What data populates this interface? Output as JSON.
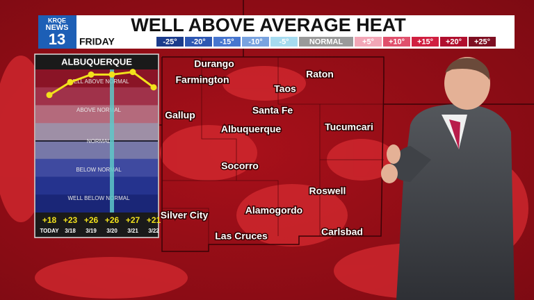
{
  "logo": {
    "top": "KRQE",
    "middle": "NEWS",
    "channel": "13"
  },
  "header": {
    "title": "WELL ABOVE AVERAGE HEAT",
    "day": "FRIDAY"
  },
  "legend": {
    "items": [
      {
        "label": "-25°",
        "color": "#1b3c8c"
      },
      {
        "label": "-20°",
        "color": "#2d57b2"
      },
      {
        "label": "-15°",
        "color": "#4776cf"
      },
      {
        "label": "-10°",
        "color": "#79a3df"
      },
      {
        "label": "-5°",
        "color": "#a6dbef"
      },
      {
        "label": "NORMAL",
        "color": "#9a9a9a"
      },
      {
        "label": "+5°",
        "color": "#f2a6b6"
      },
      {
        "label": "+10°",
        "color": "#e0506c"
      },
      {
        "label": "+15°",
        "color": "#d01f40"
      },
      {
        "label": "+20°",
        "color": "#b00f2e"
      },
      {
        "label": "+25°",
        "color": "#7e0f22"
      }
    ]
  },
  "map": {
    "cities": [
      "Durango",
      "Farmington",
      "Raton",
      "Taos",
      "Santa Fe",
      "Gallup",
      "Albuquerque",
      "Tucumcari",
      "Socorro",
      "Roswell",
      "Alamogordo",
      "Silver City",
      "Carlsbad",
      "Las Cruces"
    ]
  },
  "chart_data": {
    "type": "line",
    "title": "ALBUQUERQUE",
    "categories": [
      "TODAY",
      "3/18",
      "3/19",
      "3/20",
      "3/21",
      "3/22"
    ],
    "values": [
      18,
      23,
      26,
      26,
      27,
      21
    ],
    "value_labels": [
      "+18",
      "+23",
      "+26",
      "+26",
      "+27",
      "+21"
    ],
    "color": "#f2e21c",
    "ylim": [
      -28,
      28
    ],
    "bands": [
      "WELL ABOVE NORMAL",
      "ABOVE NORMAL",
      "NORMAL",
      "BELOW NORMAL",
      "WELL BELOW NORMAL"
    ]
  }
}
